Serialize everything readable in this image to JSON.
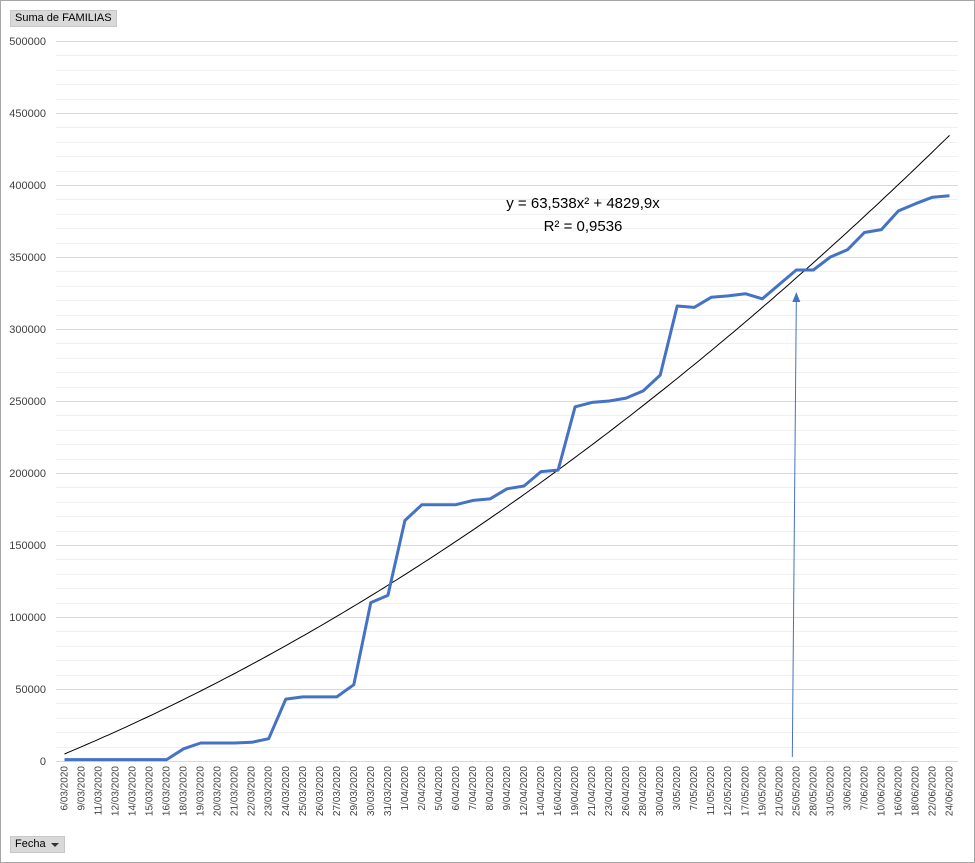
{
  "value_field_label": "Suma de FAMILIAS",
  "axis_field_label": "Fecha",
  "trendline": {
    "equation": "y = 63,538x² + 4829,9x",
    "r2": "R² = 0,9536",
    "a": 63.538,
    "b": 4829.9,
    "color": "#000000"
  },
  "chart_data": {
    "type": "line",
    "title": "",
    "xlabel": "",
    "ylabel": "",
    "ylim": [
      0,
      500000
    ],
    "yticks": [
      0,
      50000,
      100000,
      150000,
      200000,
      250000,
      300000,
      350000,
      400000,
      450000,
      500000
    ],
    "grid": true,
    "categories": [
      "6/03/2020",
      "9/03/2020",
      "11/03/2020",
      "12/03/2020",
      "14/03/2020",
      "15/03/2020",
      "16/03/2020",
      "18/03/2020",
      "19/03/2020",
      "20/03/2020",
      "21/03/2020",
      "22/03/2020",
      "23/03/2020",
      "24/03/2020",
      "25/03/2020",
      "26/03/2020",
      "27/03/2020",
      "29/03/2020",
      "30/03/2020",
      "31/03/2020",
      "1/04/2020",
      "2/04/2020",
      "5/04/2020",
      "6/04/2020",
      "7/04/2020",
      "8/04/2020",
      "9/04/2020",
      "12/04/2020",
      "14/04/2020",
      "16/04/2020",
      "19/04/2020",
      "21/04/2020",
      "23/04/2020",
      "26/04/2020",
      "28/04/2020",
      "30/04/2020",
      "3/05/2020",
      "7/05/2020",
      "11/05/2020",
      "12/05/2020",
      "17/05/2020",
      "19/05/2020",
      "21/05/2020",
      "25/05/2020",
      "28/05/2020",
      "31/05/2020",
      "3/06/2020",
      "7/06/2020",
      "10/06/2020",
      "16/06/2020",
      "18/06/2020",
      "22/06/2020",
      "24/06/2020"
    ],
    "series": [
      {
        "color": "#4472c4",
        "values": [
          1000,
          1000,
          1000,
          1000,
          1000,
          1000,
          1000,
          8500,
          12500,
          12500,
          12500,
          13000,
          15500,
          43000,
          44500,
          44500,
          44500,
          53000,
          110000,
          115000,
          167000,
          178000,
          178000,
          178000,
          181000,
          182000,
          189000,
          191000,
          201000,
          202000,
          246000,
          249000,
          250000,
          252000,
          257000,
          268000,
          316000,
          315000,
          322000,
          323000,
          324500,
          321000,
          331000,
          341000,
          341000,
          350000,
          355000,
          367000,
          369000,
          382000,
          387000,
          391500,
          392500
        ]
      }
    ],
    "annotation": {
      "type": "arrow",
      "category": "25/05/2020",
      "color": "#4472c4"
    }
  }
}
